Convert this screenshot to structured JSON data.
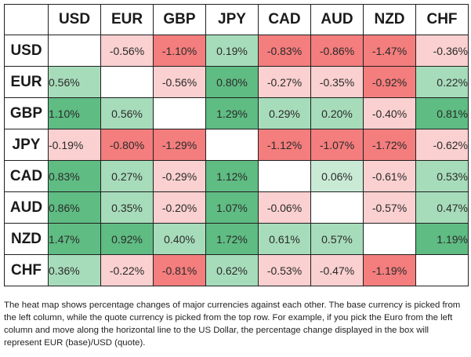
{
  "heatmap": {
    "currencies": [
      "USD",
      "EUR",
      "GBP",
      "JPY",
      "CAD",
      "AUD",
      "NZD",
      "CHF"
    ],
    "rows": [
      {
        "base": "USD",
        "values": [
          "",
          "-0.56%",
          "-1.10%",
          "0.19%",
          "-0.83%",
          "-0.86%",
          "-1.47%",
          "-0.36%"
        ]
      },
      {
        "base": "EUR",
        "values": [
          "0.56%",
          "",
          "-0.56%",
          "0.80%",
          "-0.27%",
          "-0.35%",
          "-0.92%",
          "0.22%"
        ]
      },
      {
        "base": "GBP",
        "values": [
          "1.10%",
          "0.56%",
          "",
          "1.29%",
          "0.29%",
          "0.20%",
          "-0.40%",
          "0.81%"
        ]
      },
      {
        "base": "JPY",
        "values": [
          "-0.19%",
          "-0.80%",
          "-1.29%",
          "",
          "-1.12%",
          "-1.07%",
          "-1.72%",
          "-0.62%"
        ]
      },
      {
        "base": "CAD",
        "values": [
          "0.83%",
          "0.27%",
          "-0.29%",
          "1.12%",
          "",
          "0.06%",
          "-0.61%",
          "0.53%"
        ]
      },
      {
        "base": "AUD",
        "values": [
          "0.86%",
          "0.35%",
          "-0.20%",
          "1.07%",
          "-0.06%",
          "",
          "-0.57%",
          "0.47%"
        ]
      },
      {
        "base": "NZD",
        "values": [
          "1.47%",
          "0.92%",
          "0.40%",
          "1.72%",
          "0.61%",
          "0.57%",
          "",
          "1.19%"
        ]
      },
      {
        "base": "CHF",
        "values": [
          "0.36%",
          "-0.22%",
          "-0.81%",
          "0.62%",
          "-0.53%",
          "-0.47%",
          "-1.19%",
          ""
        ]
      }
    ],
    "colors": {
      "pos_light": "#c9ebd6",
      "pos_mid": "#a7dcbb",
      "pos_strong": "#5fbc83",
      "neg_light": "#fad0d0",
      "neg_mid": "#f7aaaa",
      "neg_strong": "#f47d7d",
      "empty": "#ffffff"
    }
  },
  "note": "The heat map shows percentage changes of major currencies against each other. The base currency is picked from the left column, while the quote currency is picked from the top row. For example, if you pick the Euro from the left column and move along the horizontal line to the US Dollar, the percentage change displayed in the box will represent EUR (base)/USD (quote)."
}
